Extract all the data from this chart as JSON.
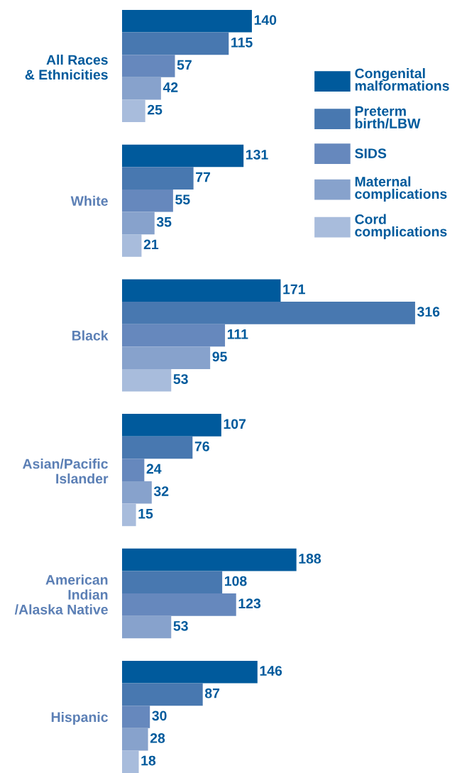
{
  "chart_data": {
    "type": "bar",
    "orientation": "horizontal",
    "data_labels": true,
    "legend": "top right",
    "categories": [
      "All Races\n& Ethnicities",
      "White",
      "Black",
      "Asian/Pacific\nIslander",
      "American\nIndian\n/Alaska Native",
      "Hispanic"
    ],
    "series": [
      {
        "name": "Congenital\nmalformations",
        "color": "#005a9c",
        "values": [
          140,
          131,
          171,
          107,
          188,
          146
        ]
      },
      {
        "name": "Preterm\nbirth/LBW",
        "color": "#4878b0",
        "values": [
          115,
          77,
          316,
          76,
          108,
          87
        ]
      },
      {
        "name": "SIDS",
        "color": "#6688bd",
        "values": [
          57,
          55,
          111,
          24,
          123,
          30
        ]
      },
      {
        "name": "Maternal\ncomplications",
        "color": "#87a2cc",
        "values": [
          42,
          35,
          95,
          32,
          53,
          28
        ]
      },
      {
        "name": "Cord\ncomplications",
        "color": "#a8bcdc",
        "values": [
          25,
          21,
          53,
          15,
          null,
          18
        ]
      }
    ]
  }
}
